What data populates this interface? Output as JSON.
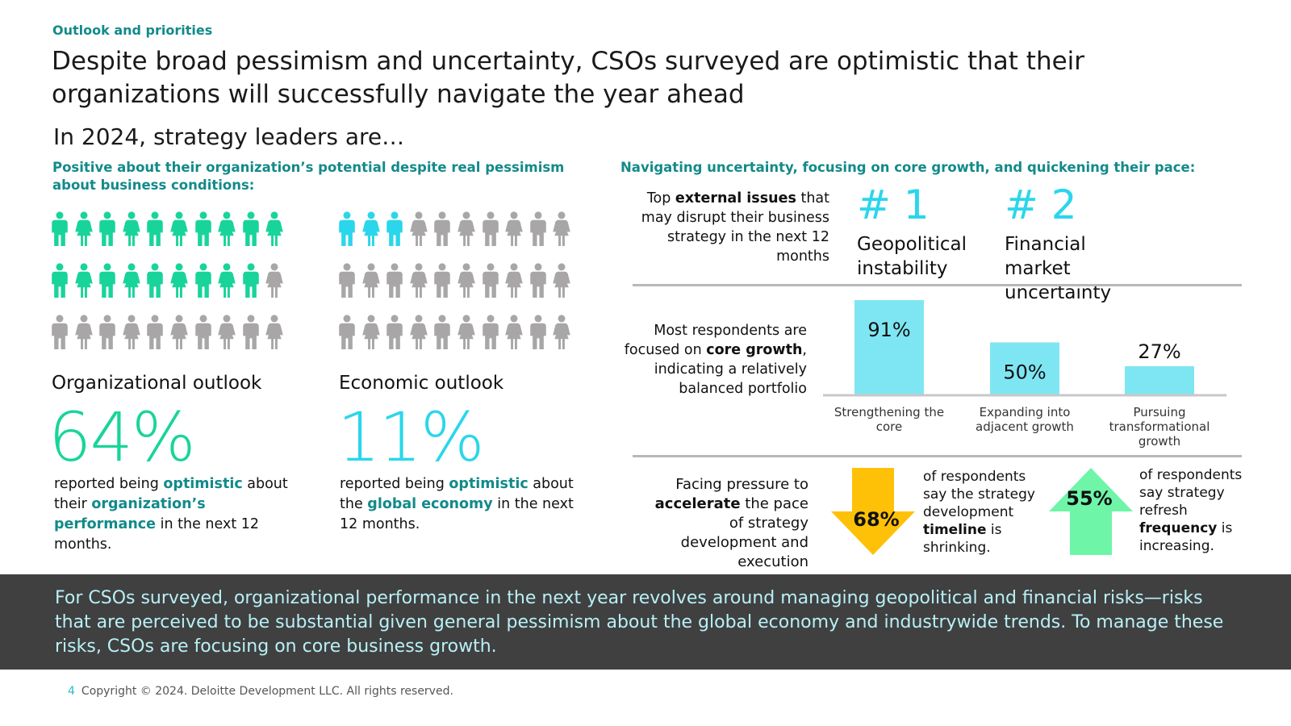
{
  "section_label": "Outlook and priorities",
  "headline_line1": "Despite broad pessimism and uncertainty, CSOs surveyed are optimistic that their",
  "headline_line2": "organizations will successfully navigate the year ahead",
  "subhead": "In 2024, strategy leaders are…",
  "left_heading": "Positive about their organization’s potential despite real pessimism about business conditions:",
  "right_heading": "Navigating uncertainty, focusing on core growth, and quickening their pace:",
  "organizational": {
    "label": "Organizational outlook",
    "stat": "64%",
    "highlighted_people": 19,
    "total_people": 30,
    "desc_1": "reported being ",
    "desc_b1": "optimistic",
    "desc_2": " about their ",
    "desc_b2": "organization’s performance",
    "desc_3": " in the next 12 months."
  },
  "economic": {
    "label": "Economic outlook",
    "stat": "11%",
    "highlighted_people": 3,
    "total_people": 30,
    "desc_1": "reported being ",
    "desc_b1": "optimistic",
    "desc_2": " about the ",
    "desc_b2": "global economy",
    "desc_3": " in the next 12 months."
  },
  "issues": {
    "intro_1": "Top ",
    "intro_b": "external issues",
    "intro_2": " that may disrupt their business strategy in the next 12 months",
    "rank1": "# 1",
    "issue1": "Geopolitical instability",
    "rank2": "# 2",
    "issue2": "Financial market uncertainty"
  },
  "portfolio": {
    "intro_1": "Most respondents are focused on ",
    "intro_b": "core growth",
    "intro_2": ", indicating a relatively balanced portfolio"
  },
  "chart_data": {
    "type": "bar",
    "categories": [
      "Strengthening the core",
      "Expanding into adjacent growth",
      "Pursuing transformational growth"
    ],
    "category_lines": [
      [
        "Strengthening the",
        "core"
      ],
      [
        "Expanding into",
        "adjacent growth"
      ],
      [
        "Pursuing",
        "transformational",
        "growth"
      ]
    ],
    "values": [
      91,
      50,
      27
    ],
    "value_labels": [
      "91%",
      "50%",
      "27%"
    ],
    "ylim": [
      0,
      100
    ],
    "color": "#7ee6f2"
  },
  "pressure": {
    "intro_1": "Facing pressure to ",
    "intro_b": "accelerate",
    "intro_2": " the pace of strategy development and execution",
    "timeline_value": "68%",
    "timeline_1": "of respondents say the strategy development ",
    "timeline_b": "timeline",
    "timeline_2": " is shrinking.",
    "frequency_value": "55%",
    "frequency_1": "of respondents say strategy refresh ",
    "frequency_b": "frequency",
    "frequency_2": " is increasing."
  },
  "banner_text": "For CSOs surveyed, organizational performance in the next year revolves around managing geopolitical and financial risks—risks that are perceived to be substantial given general pessimism about the global economy and industrywide trends. To manage these risks, CSOs are focusing on core business growth.",
  "footer": {
    "page_number": "4",
    "copyright": "Copyright © 2024. Deloitte Development LLC. All rights reserved."
  },
  "colors": {
    "teal_text": "#138a8a",
    "green_people": "#19d49a",
    "cyan_people": "#2ad6eb",
    "gray_people": "#a8a6a6",
    "arrow_down": "#ffc107",
    "arrow_up": "#6ff5a8",
    "banner_bg": "#404040"
  },
  "icons": {
    "person": "person-icon",
    "down_arrow": "down-arrow-icon",
    "up_arrow": "up-arrow-icon"
  }
}
